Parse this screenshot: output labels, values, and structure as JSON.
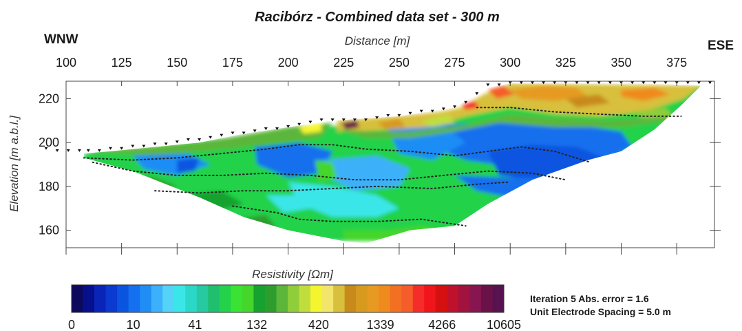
{
  "chart_data": {
    "type": "heatmap",
    "title": "Racibórz - Combined data set - 300 m",
    "xlabel": "Distance [m]",
    "ylabel": "Elevation [m a.b.l.]",
    "x_ticks": [
      100,
      125,
      150,
      175,
      200,
      225,
      250,
      275,
      300,
      325,
      350,
      375
    ],
    "y_ticks": [
      160,
      180,
      200,
      220
    ],
    "xlim": [
      100,
      392
    ],
    "ylim": [
      152,
      228
    ],
    "left_direction": "WNW",
    "right_direction": "ESE",
    "colorbar": {
      "title": "Resistivity [Ωm]",
      "tick_labels": [
        "0",
        "10",
        "41",
        "132",
        "420",
        "1339",
        "4266",
        "10605"
      ],
      "colors": [
        "#0d0a5e",
        "#060f8c",
        "#0a24b8",
        "#0a3ad0",
        "#0a55e0",
        "#1470ee",
        "#1f8df5",
        "#3cb0fa",
        "#55d2f8",
        "#3be6e8",
        "#2bd8c8",
        "#26c9a0",
        "#1fbf6f",
        "#23d24a",
        "#3ae333",
        "#44d62b",
        "#16a22e",
        "#2d9e2d",
        "#5bb63a",
        "#8fcd3a",
        "#c0dd3d",
        "#f5f52f",
        "#f2e56a",
        "#d8c03c",
        "#c88a1a",
        "#d79a1e",
        "#e69a22",
        "#ef8a1f",
        "#f36f22",
        "#f55d2a",
        "#f52c2a",
        "#f0141b",
        "#d61010",
        "#c0112c",
        "#a2123e",
        "#861550",
        "#6a1248",
        "#57124f"
      ]
    },
    "electrodes": [
      [
        91,
        197
      ],
      [
        96,
        196
      ],
      [
        101,
        196
      ],
      [
        106,
        196
      ],
      [
        110,
        196
      ],
      [
        115,
        196
      ],
      [
        120,
        197
      ],
      [
        125,
        197
      ],
      [
        130,
        198
      ],
      [
        135,
        198
      ],
      [
        140,
        199
      ],
      [
        145,
        199
      ],
      [
        150,
        200
      ],
      [
        155,
        201
      ],
      [
        160,
        201
      ],
      [
        165,
        202
      ],
      [
        170,
        203
      ],
      [
        175,
        204
      ],
      [
        180,
        204
      ],
      [
        185,
        205
      ],
      [
        190,
        206
      ],
      [
        195,
        206
      ],
      [
        200,
        207
      ],
      [
        205,
        208
      ],
      [
        210,
        209
      ],
      [
        215,
        210
      ],
      [
        220,
        210
      ],
      [
        225,
        210
      ],
      [
        230,
        210
      ],
      [
        235,
        210
      ],
      [
        240,
        211
      ],
      [
        245,
        212
      ],
      [
        250,
        212
      ],
      [
        255,
        213
      ],
      [
        260,
        214
      ],
      [
        265,
        214
      ],
      [
        270,
        215
      ],
      [
        275,
        216
      ],
      [
        280,
        218
      ],
      [
        285,
        222
      ],
      [
        290,
        226
      ],
      [
        295,
        226
      ],
      [
        300,
        227
      ],
      [
        305,
        227
      ],
      [
        310,
        227
      ],
      [
        315,
        227
      ],
      [
        320,
        227
      ],
      [
        325,
        227
      ],
      [
        330,
        227
      ],
      [
        335,
        227
      ],
      [
        340,
        227
      ],
      [
        345,
        227
      ],
      [
        350,
        227
      ],
      [
        355,
        227
      ],
      [
        360,
        227
      ],
      [
        365,
        227
      ],
      [
        370,
        227
      ],
      [
        375,
        227
      ],
      [
        380,
        227
      ],
      [
        385,
        227
      ],
      [
        390,
        227
      ]
    ],
    "model_boundary": [
      [
        108,
        195
      ],
      [
        120,
        196
      ],
      [
        140,
        198
      ],
      [
        160,
        200
      ],
      [
        180,
        204
      ],
      [
        200,
        207
      ],
      [
        220,
        210
      ],
      [
        250,
        212
      ],
      [
        275,
        216
      ],
      [
        290,
        225
      ],
      [
        300,
        227
      ],
      [
        320,
        227
      ],
      [
        360,
        227
      ],
      [
        386,
        226
      ],
      [
        377,
        217
      ],
      [
        365,
        206
      ],
      [
        350,
        196
      ],
      [
        335,
        192
      ],
      [
        310,
        183
      ],
      [
        290,
        172
      ],
      [
        275,
        162
      ],
      [
        255,
        160
      ],
      [
        235,
        154
      ],
      [
        225,
        155
      ],
      [
        200,
        160
      ],
      [
        180,
        166
      ],
      [
        160,
        175
      ],
      [
        130,
        187
      ],
      [
        108,
        193
      ]
    ],
    "dotted_boundaries": [
      [
        [
          108,
          193
        ],
        [
          130,
          192
        ],
        [
          150,
          193
        ],
        [
          170,
          195
        ],
        [
          190,
          197
        ],
        [
          205,
          199
        ],
        [
          220,
          199
        ],
        [
          235,
          197
        ],
        [
          255,
          196
        ],
        [
          275,
          194
        ],
        [
          290,
          196
        ],
        [
          305,
          198
        ],
        [
          320,
          196
        ],
        [
          336,
          191
        ]
      ],
      [
        [
          112,
          191
        ],
        [
          130,
          187
        ],
        [
          150,
          185
        ],
        [
          170,
          185
        ],
        [
          190,
          186
        ],
        [
          210,
          185
        ],
        [
          230,
          183
        ],
        [
          250,
          183
        ],
        [
          270,
          185
        ],
        [
          290,
          187
        ],
        [
          310,
          186
        ],
        [
          325,
          183
        ]
      ],
      [
        [
          140,
          178
        ],
        [
          160,
          177
        ],
        [
          180,
          178
        ],
        [
          200,
          178
        ],
        [
          220,
          179
        ],
        [
          240,
          180
        ],
        [
          265,
          179
        ],
        [
          285,
          181
        ],
        [
          300,
          182
        ]
      ],
      [
        [
          175,
          171
        ],
        [
          195,
          168
        ],
        [
          205,
          165
        ],
        [
          220,
          164
        ],
        [
          240,
          164
        ],
        [
          260,
          165
        ],
        [
          280,
          162
        ]
      ],
      [
        [
          285,
          216
        ],
        [
          300,
          216
        ],
        [
          320,
          214
        ],
        [
          340,
          213
        ],
        [
          360,
          212
        ],
        [
          377,
          212
        ]
      ]
    ],
    "regions": [
      {
        "level": 13,
        "points": [
          [
            108,
            195
          ],
          [
            386,
            226
          ],
          [
            386,
            155
          ],
          [
            108,
            155
          ]
        ]
      },
      {
        "level": 18,
        "points": [
          [
            108,
            196
          ],
          [
            160,
            200
          ],
          [
            200,
            207
          ],
          [
            220,
            209
          ],
          [
            214,
            202
          ],
          [
            180,
            198
          ],
          [
            140,
            194
          ]
        ]
      },
      {
        "level": 5,
        "points": [
          [
            260,
            208
          ],
          [
            300,
            209
          ],
          [
            330,
            208
          ],
          [
            350,
            205
          ],
          [
            355,
            198
          ],
          [
            340,
            190
          ],
          [
            320,
            187
          ],
          [
            300,
            189
          ],
          [
            280,
            192
          ],
          [
            265,
            198
          ]
        ]
      },
      {
        "level": 4,
        "points": [
          [
            290,
            196
          ],
          [
            310,
            199
          ],
          [
            330,
            198
          ],
          [
            345,
            192
          ],
          [
            335,
            186
          ],
          [
            310,
            183
          ],
          [
            295,
            185
          ]
        ]
      },
      {
        "level": 6,
        "points": [
          [
            245,
            206
          ],
          [
            270,
            208
          ],
          [
            280,
            200
          ],
          [
            265,
            192
          ],
          [
            250,
            195
          ]
        ]
      },
      {
        "level": 5,
        "points": [
          [
            185,
            198
          ],
          [
            205,
            200
          ],
          [
            220,
            196
          ],
          [
            215,
            186
          ],
          [
            200,
            184
          ],
          [
            186,
            190
          ]
        ]
      },
      {
        "level": 6,
        "points": [
          [
            130,
            194
          ],
          [
            155,
            195
          ],
          [
            165,
            190
          ],
          [
            150,
            185
          ],
          [
            135,
            188
          ]
        ]
      },
      {
        "level": 4,
        "points": [
          [
            150,
            192
          ],
          [
            160,
            193
          ],
          [
            158,
            187
          ],
          [
            150,
            186
          ]
        ]
      },
      {
        "level": 7,
        "points": [
          [
            215,
            192
          ],
          [
            240,
            194
          ],
          [
            255,
            188
          ],
          [
            250,
            180
          ],
          [
            230,
            178
          ],
          [
            218,
            184
          ]
        ]
      },
      {
        "level": 9,
        "points": [
          [
            200,
            182
          ],
          [
            220,
            180
          ],
          [
            240,
            176
          ],
          [
            250,
            170
          ],
          [
            240,
            166
          ],
          [
            220,
            166
          ],
          [
            205,
            172
          ]
        ]
      },
      {
        "level": 5,
        "points": [
          [
            275,
            185
          ],
          [
            300,
            184
          ],
          [
            320,
            184
          ],
          [
            330,
            181
          ],
          [
            320,
            176
          ],
          [
            300,
            175
          ],
          [
            285,
            178
          ]
        ]
      },
      {
        "level": 15,
        "points": [
          [
            212,
            192
          ],
          [
            220,
            191
          ],
          [
            222,
            184
          ],
          [
            214,
            182
          ]
        ]
      },
      {
        "level": 17,
        "points": [
          [
            120,
            185
          ],
          [
            140,
            184
          ],
          [
            150,
            180
          ],
          [
            140,
            176
          ],
          [
            125,
            178
          ]
        ]
      },
      {
        "level": 16,
        "points": [
          [
            150,
            176
          ],
          [
            170,
            178
          ],
          [
            180,
            172
          ],
          [
            165,
            168
          ],
          [
            152,
            170
          ]
        ]
      },
      {
        "level": 17,
        "points": [
          [
            175,
            165
          ],
          [
            190,
            167
          ],
          [
            195,
            161
          ],
          [
            182,
            159
          ]
        ]
      },
      {
        "level": 15,
        "points": [
          [
            225,
            160
          ],
          [
            245,
            160
          ],
          [
            260,
            162
          ],
          [
            270,
            160
          ],
          [
            255,
            156
          ],
          [
            235,
            155
          ],
          [
            225,
            156
          ]
        ]
      },
      {
        "level": 9,
        "points": [
          [
            190,
            176
          ],
          [
            205,
            176
          ],
          [
            210,
            170
          ],
          [
            198,
            168
          ]
        ]
      },
      {
        "level": 21,
        "points": [
          [
            205,
            207
          ],
          [
            215,
            209
          ],
          [
            215,
            205
          ],
          [
            207,
            204
          ]
        ]
      },
      {
        "level": 23,
        "points": [
          [
            222,
            210
          ],
          [
            250,
            212
          ],
          [
            268,
            214
          ],
          [
            278,
            216
          ],
          [
            288,
            222
          ],
          [
            300,
            227
          ],
          [
            386,
            226
          ],
          [
            378,
            220
          ],
          [
            360,
            214
          ],
          [
            340,
            212
          ],
          [
            320,
            213
          ],
          [
            300,
            216
          ],
          [
            280,
            212
          ],
          [
            262,
            207
          ],
          [
            245,
            206
          ],
          [
            230,
            205
          ],
          [
            222,
            205
          ]
        ]
      },
      {
        "level": 18,
        "points": [
          [
            222,
            206
          ],
          [
            240,
            205
          ],
          [
            255,
            205
          ],
          [
            270,
            207
          ],
          [
            280,
            208
          ],
          [
            300,
            213
          ],
          [
            320,
            211
          ],
          [
            345,
            210
          ],
          [
            360,
            211
          ],
          [
            377,
            214
          ],
          [
            372,
            210
          ],
          [
            350,
            207
          ],
          [
            320,
            207
          ],
          [
            295,
            209
          ],
          [
            275,
            205
          ],
          [
            255,
            202
          ],
          [
            235,
            202
          ]
        ]
      },
      {
        "level": 26,
        "points": [
          [
            300,
            224
          ],
          [
            315,
            226
          ],
          [
            330,
            225
          ],
          [
            335,
            221
          ],
          [
            320,
            219
          ],
          [
            305,
            220
          ]
        ]
      },
      {
        "level": 27,
        "points": [
          [
            350,
            224
          ],
          [
            365,
            225
          ],
          [
            372,
            222
          ],
          [
            360,
            219
          ],
          [
            350,
            221
          ]
        ]
      },
      {
        "level": 29,
        "points": [
          [
            290,
            224
          ],
          [
            297,
            226
          ],
          [
            302,
            222
          ],
          [
            294,
            220
          ]
        ]
      },
      {
        "level": 30,
        "points": [
          [
            278,
            217
          ],
          [
            284,
            219
          ],
          [
            286,
            216
          ],
          [
            280,
            215
          ]
        ]
      },
      {
        "level": 36,
        "points": [
          [
            224,
            209
          ],
          [
            231,
            210
          ],
          [
            232,
            207
          ],
          [
            226,
            206
          ]
        ]
      },
      {
        "level": 25,
        "points": [
          [
            240,
            209
          ],
          [
            250,
            211
          ],
          [
            253,
            207
          ],
          [
            244,
            206
          ]
        ]
      },
      {
        "level": 20,
        "points": [
          [
            260,
            210
          ],
          [
            272,
            213
          ],
          [
            275,
            209
          ],
          [
            264,
            207
          ]
        ]
      },
      {
        "level": 24,
        "points": [
          [
            325,
            220
          ],
          [
            340,
            222
          ],
          [
            345,
            218
          ],
          [
            330,
            216
          ]
        ]
      },
      {
        "level": 19,
        "points": [
          [
            355,
            214
          ],
          [
            370,
            216
          ],
          [
            373,
            212
          ],
          [
            360,
            211
          ]
        ]
      }
    ]
  },
  "info": {
    "line1": "Iteration 5 Abs. error = 1.6",
    "line2": "Unit Electrode Spacing = 5.0 m"
  }
}
